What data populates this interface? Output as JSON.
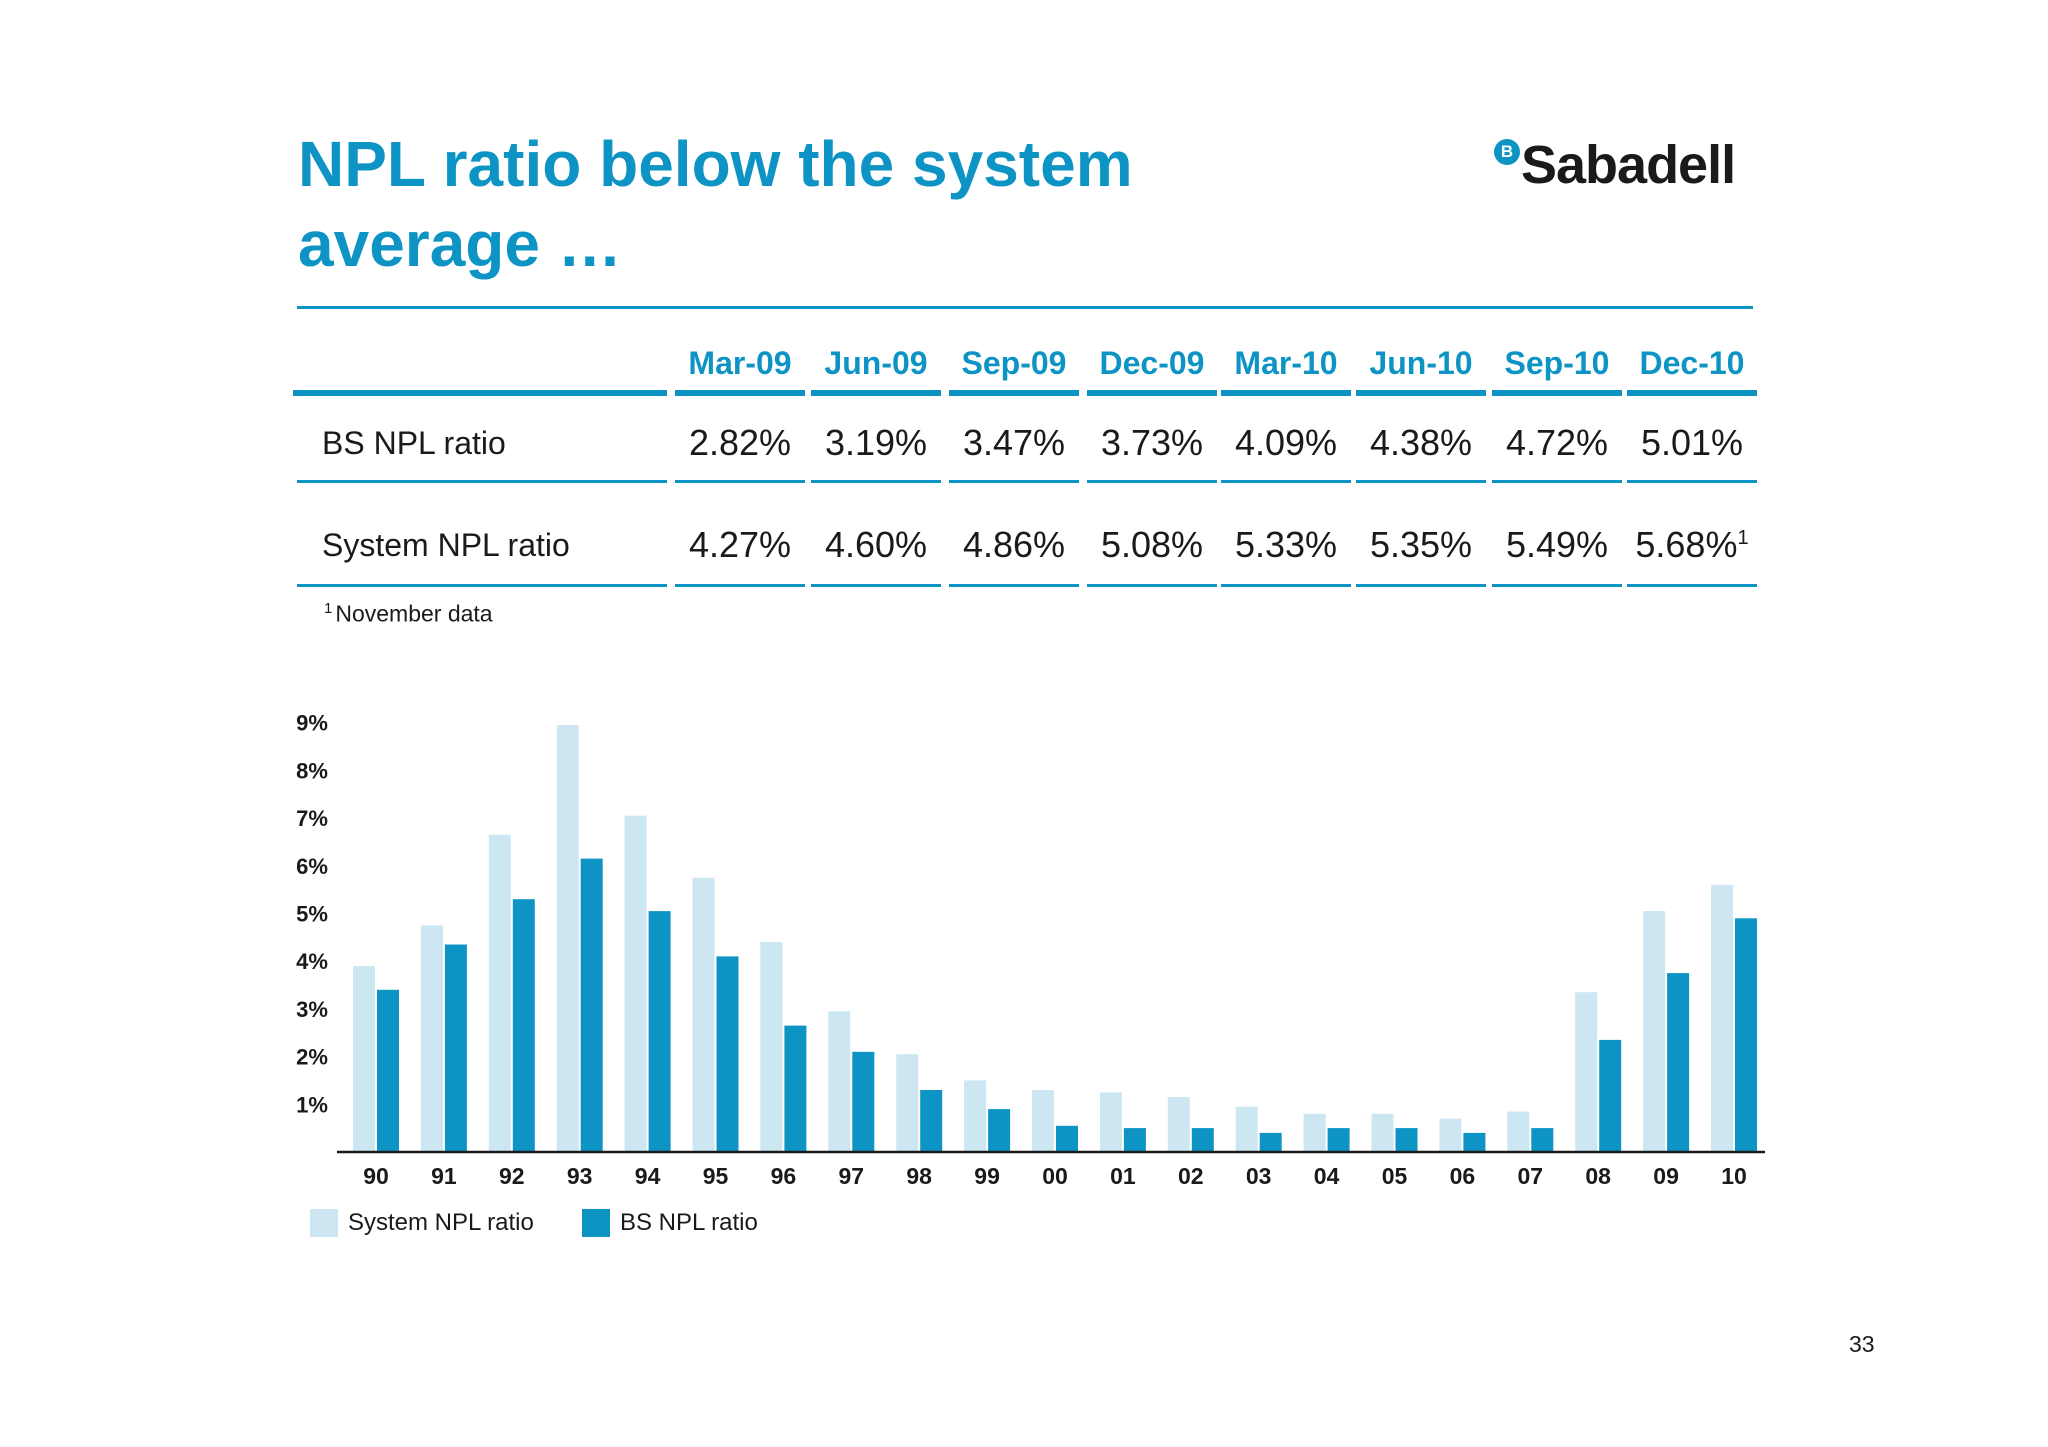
{
  "title_line1": "NPL ratio below the system",
  "title_line2": "average …",
  "logo": {
    "badge": "B",
    "text": "Sabadell"
  },
  "table": {
    "columns": [
      "Mar-09",
      "Jun-09",
      "Sep-09",
      "Dec-09",
      "Mar-10",
      "Jun-10",
      "Sep-10",
      "Dec-10"
    ],
    "rows": [
      {
        "label": "BS NPL ratio",
        "values": [
          "2.82%",
          "3.19%",
          "3.47%",
          "3.73%",
          "4.09%",
          "4.38%",
          "4.72%",
          "5.01%"
        ]
      },
      {
        "label": "System NPL ratio",
        "values": [
          "4.27%",
          "4.60%",
          "4.86%",
          "5.08%",
          "5.33%",
          "5.35%",
          "5.49%",
          "5.68%"
        ],
        "last_superscript": "1"
      }
    ],
    "footnote_mark": "1",
    "footnote_text": "November data"
  },
  "colors": {
    "accent": "#0d94c4",
    "system_bar": "#cce6f2",
    "bs_bar": "#0d94c4"
  },
  "chart_data": {
    "type": "bar",
    "categories": [
      "90",
      "91",
      "92",
      "93",
      "94",
      "95",
      "96",
      "97",
      "98",
      "99",
      "00",
      "01",
      "02",
      "03",
      "04",
      "05",
      "06",
      "07",
      "08",
      "09",
      "10"
    ],
    "series": [
      {
        "name": "System NPL ratio",
        "values": [
          3.9,
          4.75,
          6.65,
          8.95,
          7.05,
          5.75,
          4.4,
          2.95,
          2.05,
          1.5,
          1.3,
          1.25,
          1.15,
          0.95,
          0.8,
          0.8,
          0.7,
          0.85,
          3.35,
          5.05,
          5.6
        ]
      },
      {
        "name": "BS NPL ratio",
        "values": [
          3.4,
          4.35,
          5.3,
          6.15,
          5.05,
          4.1,
          2.65,
          2.1,
          1.3,
          0.9,
          0.55,
          0.5,
          0.5,
          0.4,
          0.5,
          0.5,
          0.4,
          0.5,
          2.35,
          3.75,
          4.9
        ]
      }
    ],
    "y_ticks": [
      "1%",
      "2%",
      "3%",
      "4%",
      "5%",
      "6%",
      "7%",
      "8%",
      "9%"
    ],
    "ylim": [
      0,
      9
    ],
    "grid": false,
    "legend": "bottom-left"
  },
  "page_number": "33"
}
